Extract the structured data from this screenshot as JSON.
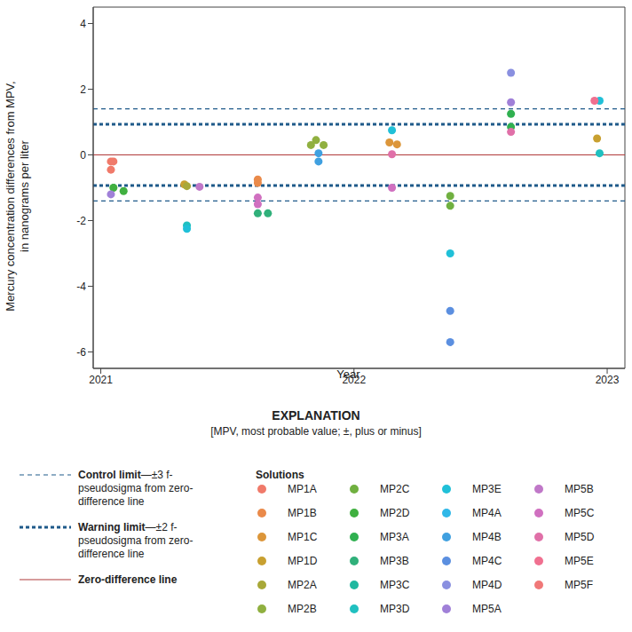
{
  "chart_data": {
    "type": "scatter",
    "x_label": "Year",
    "y_label": [
      "Mercury concentration differences from MPV,",
      "in nanograms per liter"
    ],
    "xlim": [
      2020.97,
      2023.07
    ],
    "xticks": [
      2021,
      2022,
      2023
    ],
    "ylim": [
      -6.5,
      4.5
    ],
    "yticks": [
      -6,
      -4,
      -2,
      0,
      2,
      4
    ],
    "grid": false,
    "reference_lines": [
      {
        "name": "Control limit",
        "description": "—±3 f-pseudosigma from zero-difference line",
        "values": [
          1.4,
          -1.4
        ],
        "color": "#1f5a8a",
        "line_style": "dashed"
      },
      {
        "name": "Warning limit",
        "description": "—±2 f-pseudosigma from zero-difference line",
        "values": [
          0.93,
          -0.93
        ],
        "color": "#1f5a8a",
        "line_style": "thick-dashed"
      },
      {
        "name": "Zero-difference line",
        "description": "",
        "values": [
          0
        ],
        "color": "#b03a3a",
        "line_style": "solid"
      }
    ],
    "explanation": {
      "title": "EXPLANATION",
      "note": "[MPV, most probable value; ±, plus or minus]",
      "solutions_title": "Solutions"
    },
    "series": [
      {
        "name": "MP1A",
        "color": "#f07a6a",
        "x": [
          2021.04,
          2021.05,
          2021.04
        ],
        "values": [
          -0.2,
          -0.2,
          -0.45
        ]
      },
      {
        "name": "MP1B",
        "color": "#ea8a4a",
        "x": [
          2021.62,
          2021.62
        ],
        "values": [
          -0.75,
          -0.85
        ]
      },
      {
        "name": "MP1C",
        "color": "#dc963a",
        "x": [
          2022.14,
          2022.17
        ],
        "values": [
          0.38,
          0.32
        ]
      },
      {
        "name": "MP1D",
        "color": "#c8a030",
        "x": [
          2021.33,
          2022.96
        ],
        "values": [
          -0.9,
          0.5
        ]
      },
      {
        "name": "MP2A",
        "color": "#a8a838",
        "x": [
          2021.34
        ],
        "values": [
          -0.95
        ]
      },
      {
        "name": "MP2B",
        "color": "#90b040",
        "x": [
          2021.83,
          2021.85,
          2021.88
        ],
        "values": [
          0.3,
          0.45,
          0.3
        ]
      },
      {
        "name": "MP2C",
        "color": "#70b040",
        "x": [
          2022.38,
          2022.38
        ],
        "values": [
          -1.25,
          -1.55
        ]
      },
      {
        "name": "MP2D",
        "color": "#40b040",
        "x": [
          2021.05,
          2021.09
        ],
        "values": [
          -1.0,
          -1.1
        ]
      },
      {
        "name": "MP3A",
        "color": "#30b050",
        "x": [
          2022.62,
          2022.62
        ],
        "values": [
          1.25,
          0.85
        ]
      },
      {
        "name": "MP3B",
        "color": "#30b07a",
        "x": [
          2021.62,
          2021.66
        ],
        "values": [
          -1.78,
          -1.78
        ]
      },
      {
        "name": "MP3C",
        "color": "#20b8a0",
        "x": [],
        "values": []
      },
      {
        "name": "MP3D",
        "color": "#20c0c0",
        "x": [
          2021.34,
          2022.97
        ],
        "values": [
          -2.15,
          0.05
        ]
      },
      {
        "name": "MP3E",
        "color": "#20c0d8",
        "x": [
          2021.34,
          2022.15,
          2022.38,
          2022.97
        ],
        "values": [
          -2.25,
          0.75,
          -3.0,
          1.65
        ]
      },
      {
        "name": "MP4A",
        "color": "#30b8e8",
        "x": [],
        "values": []
      },
      {
        "name": "MP4B",
        "color": "#40a0e0",
        "x": [
          2021.86,
          2021.86
        ],
        "values": [
          0.05,
          -0.2
        ]
      },
      {
        "name": "MP4C",
        "color": "#5b8fe0",
        "x": [
          2022.38,
          2022.38
        ],
        "values": [
          -4.75,
          -5.7
        ]
      },
      {
        "name": "MP4D",
        "color": "#8a90e0",
        "x": [
          2022.62
        ],
        "values": [
          2.5
        ]
      },
      {
        "name": "MP5A",
        "color": "#a080d8",
        "x": [
          2021.04,
          2022.62
        ],
        "values": [
          -1.2,
          1.6
        ]
      },
      {
        "name": "MP5B",
        "color": "#c078c8",
        "x": [
          2021.39
        ],
        "values": [
          -0.97
        ]
      },
      {
        "name": "MP5C",
        "color": "#d070c0",
        "x": [
          2021.62,
          2021.62,
          2022.15
        ],
        "values": [
          -1.3,
          -1.5,
          -1.0
        ]
      },
      {
        "name": "MP5D",
        "color": "#e070a8",
        "x": [
          2022.15,
          2022.62
        ],
        "values": [
          0.02,
          0.7
        ]
      },
      {
        "name": "MP5E",
        "color": "#f07090",
        "x": [
          2022.95
        ],
        "values": [
          1.65
        ]
      },
      {
        "name": "MP5F",
        "color": "#f07878",
        "x": [],
        "values": []
      }
    ]
  }
}
